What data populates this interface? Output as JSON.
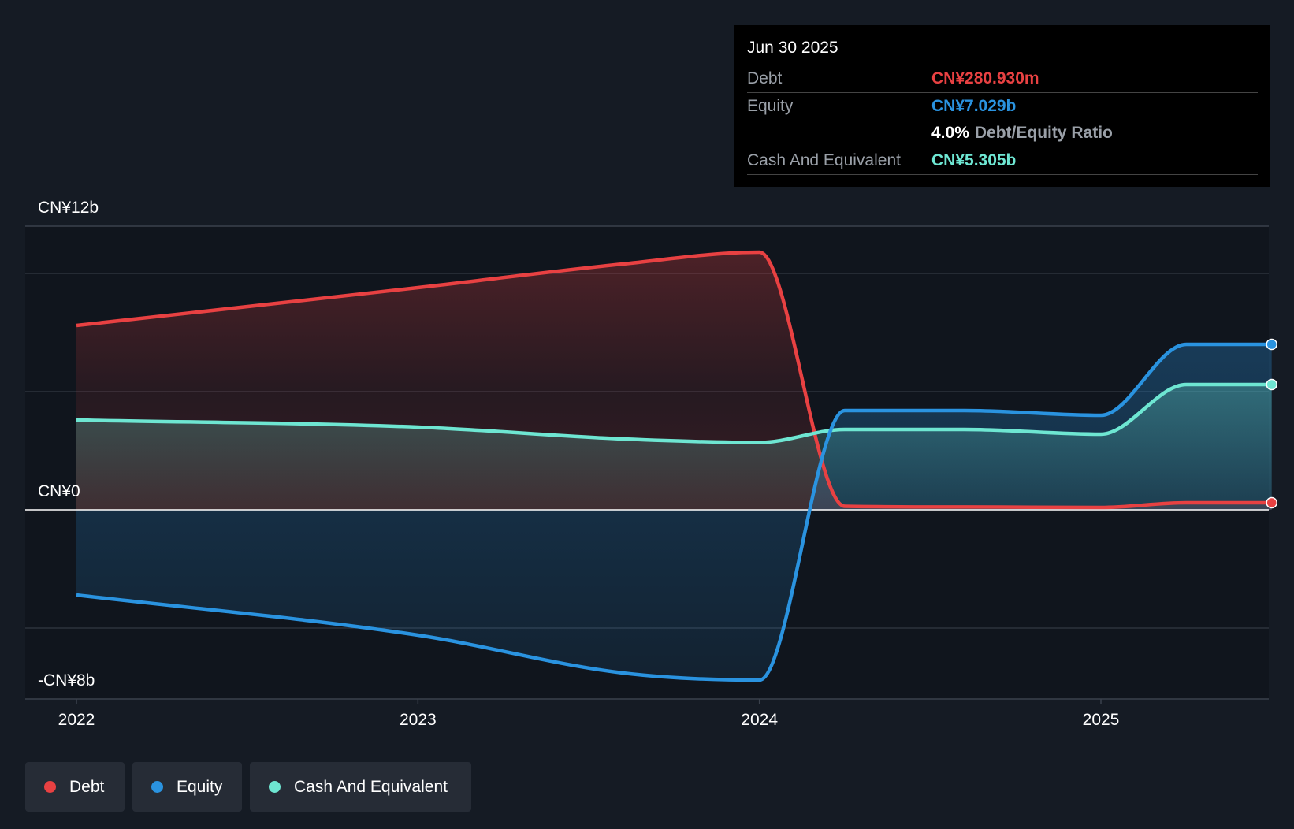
{
  "colors": {
    "debt": "#e84142",
    "equity": "#2a93e0",
    "cash": "#6ee6d2",
    "grid": "#3a414c",
    "background": "#151b24",
    "plot_background": "#10151d"
  },
  "tooltip": {
    "date": "Jun 30 2025",
    "debt_label": "Debt",
    "debt_value": "CN¥280.930m",
    "equity_label": "Equity",
    "equity_value": "CN¥7.029b",
    "ratio_value": "4.0%",
    "ratio_label": "Debt/Equity Ratio",
    "cash_label": "Cash And Equivalent",
    "cash_value": "CN¥5.305b"
  },
  "legend": {
    "debt": "Debt",
    "equity": "Equity",
    "cash": "Cash And Equivalent"
  },
  "chart_data": {
    "type": "area",
    "title": "",
    "xlabel": "",
    "ylabel": "",
    "ylim": [
      -8,
      12
    ],
    "xlim": [
      2021.85,
      2025.5
    ],
    "x_ticks": [
      {
        "value": 2022,
        "label": "2022"
      },
      {
        "value": 2023,
        "label": "2023"
      },
      {
        "value": 2024,
        "label": "2024"
      },
      {
        "value": 2025,
        "label": "2025"
      }
    ],
    "y_tick_labels": [
      {
        "value": 12,
        "label": "CN¥12b"
      },
      {
        "value": 0,
        "label": "CN¥0"
      },
      {
        "value": -8,
        "label": "-CN¥8b"
      }
    ],
    "gridlines": [
      12,
      10,
      5,
      0,
      -5,
      -8
    ],
    "series": [
      {
        "name": "Debt",
        "key": "debt",
        "points": [
          [
            2022.0,
            7.8
          ],
          [
            2023.0,
            9.4
          ],
          [
            2023.6,
            10.4
          ],
          [
            2024.0,
            10.9
          ],
          [
            2024.25,
            0.15
          ],
          [
            2024.6,
            0.12
          ],
          [
            2025.0,
            0.1
          ],
          [
            2025.25,
            0.3
          ],
          [
            2025.5,
            0.3
          ]
        ]
      },
      {
        "name": "Equity",
        "key": "equity",
        "points": [
          [
            2022.0,
            -3.6
          ],
          [
            2023.0,
            -5.3
          ],
          [
            2023.6,
            -6.9
          ],
          [
            2024.0,
            -7.2
          ],
          [
            2024.25,
            4.2
          ],
          [
            2024.6,
            4.2
          ],
          [
            2025.0,
            4.0
          ],
          [
            2025.25,
            7.0
          ],
          [
            2025.5,
            7.0
          ]
        ]
      },
      {
        "name": "Cash And Equivalent",
        "key": "cash",
        "points": [
          [
            2022.0,
            3.8
          ],
          [
            2023.0,
            3.5
          ],
          [
            2023.6,
            3.0
          ],
          [
            2024.0,
            2.85
          ],
          [
            2024.25,
            3.4
          ],
          [
            2024.6,
            3.4
          ],
          [
            2025.0,
            3.2
          ],
          [
            2025.25,
            5.3
          ],
          [
            2025.5,
            5.3
          ]
        ]
      }
    ]
  }
}
